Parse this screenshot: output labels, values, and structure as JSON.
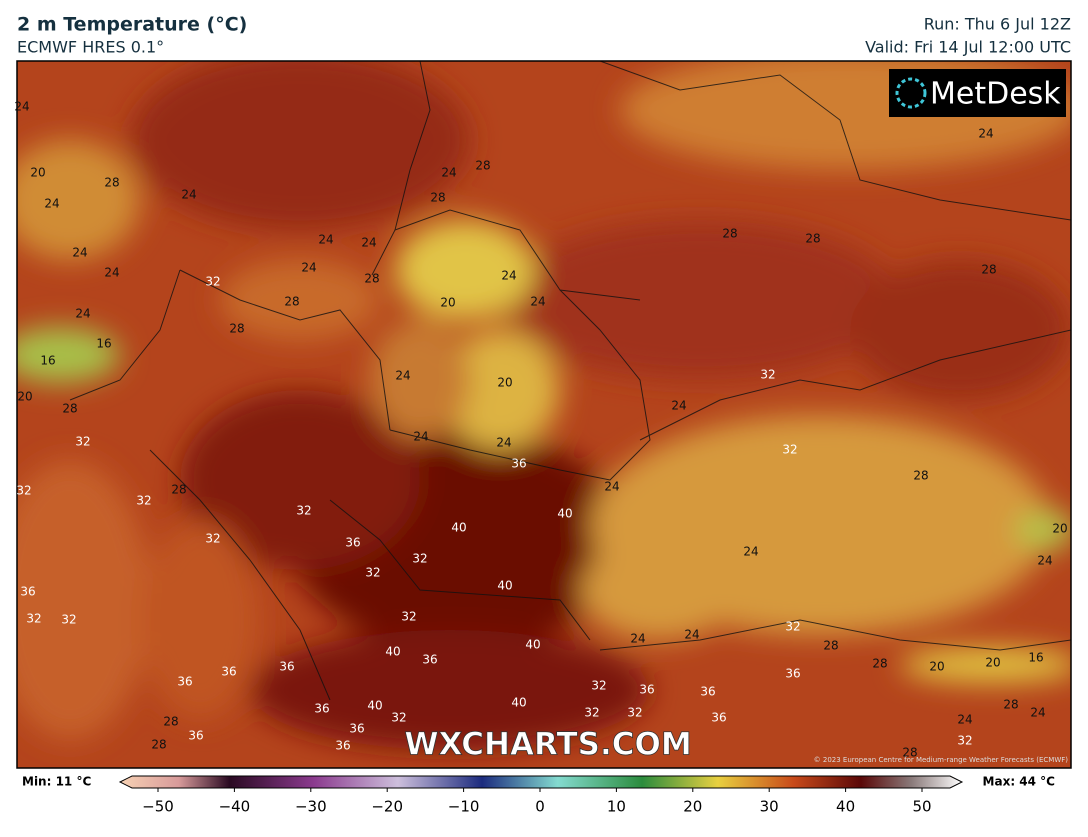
{
  "header": {
    "title": "2 m Temperature (°C)",
    "subtitle": "ECMWF HRES 0.1°",
    "run": "Run: Thu 6 Jul 12Z",
    "valid": "Valid: Fri 14 Jul 12:00 UTC"
  },
  "map": {
    "watermark": "WXCHARTS.COM",
    "logo": "MetDesk",
    "credit": "© 2023 European Centre for Medium-range Weather Forecasts (ECMWF)",
    "contour_labels": [
      24,
      20,
      28,
      24,
      24,
      24,
      24,
      32,
      24,
      24,
      24,
      28,
      28,
      28,
      24,
      16,
      16,
      20,
      28,
      32,
      32,
      32,
      28,
      32,
      32,
      36,
      32,
      32,
      40,
      40,
      40,
      36,
      24,
      24,
      24,
      20,
      20,
      24,
      24,
      24,
      28,
      28,
      28,
      28,
      24,
      28,
      32,
      24,
      32,
      24,
      24,
      28,
      20,
      24,
      36,
      32,
      32,
      36,
      36,
      28,
      36,
      36,
      28,
      36,
      36,
      36,
      40,
      32,
      40,
      36,
      32,
      40,
      40,
      32,
      32,
      32,
      36,
      36,
      36,
      36,
      32,
      28,
      28,
      20,
      20,
      16,
      28,
      24,
      24,
      32,
      28,
      24,
      24
    ]
  },
  "colorbar": {
    "min_label": "Min: 11 °C",
    "max_label": "Max: 44 °C",
    "range": [
      -50,
      50
    ],
    "ticks": [
      {
        "value": -50,
        "label": "−50"
      },
      {
        "value": -40,
        "label": "−40"
      },
      {
        "value": -30,
        "label": "−30"
      },
      {
        "value": -20,
        "label": "−20"
      },
      {
        "value": -10,
        "label": "−10"
      },
      0,
      10,
      20,
      30,
      40,
      50
    ]
  }
}
